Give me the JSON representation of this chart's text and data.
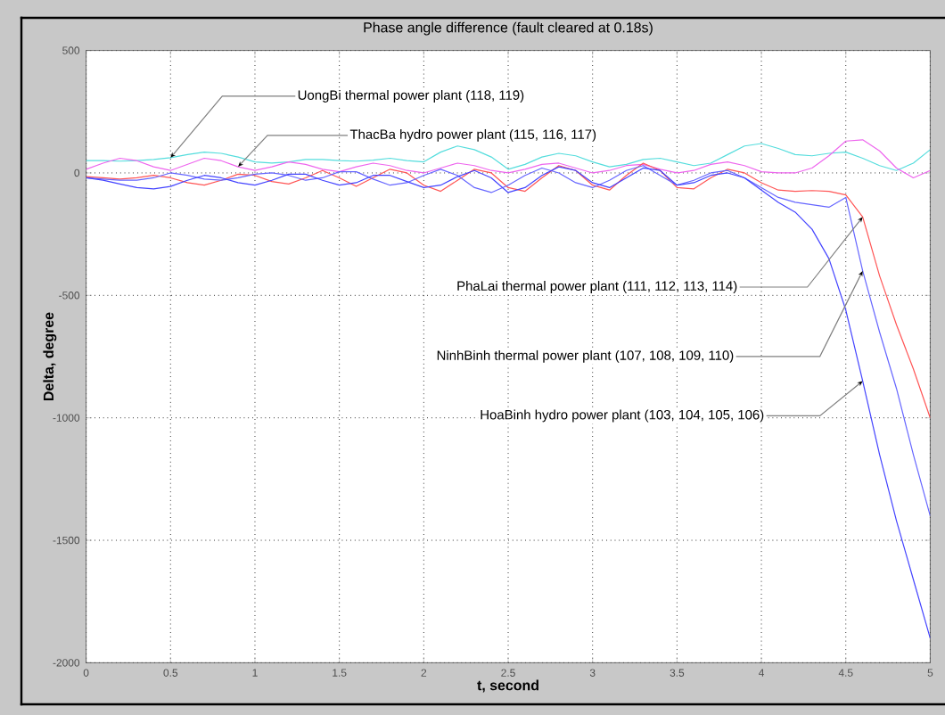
{
  "chart_data": {
    "type": "line",
    "title": "Phase angle difference (fault cleared at 0.18s)",
    "xlabel": "t, second",
    "ylabel": "Delta, degree",
    "x": [
      0,
      0.1,
      0.2,
      0.3,
      0.4,
      0.5,
      0.6,
      0.7,
      0.8,
      0.9,
      1.0,
      1.1,
      1.2,
      1.3,
      1.4,
      1.5,
      1.6,
      1.7,
      1.8,
      1.9,
      2.0,
      2.1,
      2.2,
      2.3,
      2.4,
      2.5,
      2.6,
      2.7,
      2.8,
      2.9,
      3.0,
      3.1,
      3.2,
      3.3,
      3.4,
      3.5,
      3.6,
      3.7,
      3.8,
      3.9,
      4.0,
      4.1,
      4.2,
      4.3,
      4.4,
      4.5,
      4.6,
      4.7,
      4.8,
      4.9,
      5.0
    ],
    "series": [
      {
        "color": "#55dddd",
        "values": [
          50,
          50,
          48,
          50,
          55,
          62,
          75,
          85,
          80,
          65,
          45,
          40,
          45,
          55,
          55,
          50,
          48,
          52,
          60,
          50,
          45,
          85,
          110,
          95,
          65,
          15,
          35,
          65,
          80,
          70,
          45,
          25,
          35,
          55,
          60,
          45,
          30,
          40,
          75,
          110,
          120,
          100,
          75,
          70,
          80,
          85,
          60,
          30,
          10,
          40,
          95
        ]
      },
      {
        "color": "#ee66ee",
        "values": [
          15,
          40,
          60,
          50,
          25,
          10,
          35,
          60,
          50,
          25,
          10,
          25,
          45,
          35,
          15,
          5,
          25,
          40,
          30,
          10,
          0,
          20,
          40,
          30,
          10,
          0,
          15,
          35,
          40,
          20,
          0,
          10,
          30,
          35,
          15,
          0,
          10,
          35,
          45,
          30,
          5,
          0,
          0,
          20,
          70,
          130,
          135,
          90,
          20,
          -20,
          10
        ]
      },
      {
        "color": "#ff5555",
        "values": [
          -15,
          -20,
          -25,
          -20,
          -10,
          -20,
          -40,
          -50,
          -30,
          -5,
          -10,
          -35,
          -45,
          -20,
          10,
          -20,
          -55,
          -20,
          15,
          0,
          -50,
          -75,
          -30,
          15,
          0,
          -60,
          -75,
          -20,
          30,
          10,
          -50,
          -70,
          -10,
          40,
          10,
          -60,
          -65,
          -20,
          15,
          0,
          -40,
          -70,
          -75,
          -72,
          -75,
          -90,
          -180,
          -420,
          -620,
          -800,
          -1000
        ]
      },
      {
        "color": "#6666ff",
        "values": [
          -20,
          -25,
          -30,
          -30,
          -20,
          0,
          -10,
          -25,
          -30,
          -20,
          -5,
          0,
          -10,
          -30,
          -20,
          5,
          5,
          -25,
          -50,
          -40,
          -10,
          15,
          -10,
          -60,
          -80,
          -50,
          -10,
          20,
          0,
          -40,
          -60,
          -30,
          10,
          30,
          -10,
          -50,
          -30,
          0,
          10,
          -20,
          -60,
          -100,
          -120,
          -130,
          -140,
          -100,
          -400,
          -650,
          -880,
          -1150,
          -1400
        ]
      },
      {
        "color": "#4444ff",
        "values": [
          -20,
          -30,
          -45,
          -60,
          -65,
          -55,
          -30,
          -10,
          -20,
          -40,
          -50,
          -30,
          -5,
          -5,
          -30,
          -50,
          -40,
          -10,
          -10,
          -35,
          -60,
          -50,
          -15,
          10,
          -20,
          -80,
          -60,
          -10,
          25,
          10,
          -40,
          -60,
          -20,
          20,
          10,
          -50,
          -40,
          -10,
          0,
          -20,
          -70,
          -120,
          -160,
          -230,
          -350,
          -560,
          -850,
          -1150,
          -1420,
          -1660,
          -1900
        ]
      }
    ],
    "xlim": [
      0,
      5
    ],
    "ylim": [
      -2000,
      500
    ],
    "xticks": [
      0,
      0.5,
      1,
      1.5,
      2,
      2.5,
      3,
      3.5,
      4,
      4.5,
      5
    ],
    "yticks": [
      -2000,
      -1500,
      -1000,
      -500,
      0,
      500
    ],
    "grid": true,
    "annotations": [
      {
        "text": "UongBi thermal power plant (118, 119)",
        "x": 0.5,
        "y": 62
      },
      {
        "text": "ThacBa hydro power plant (115, 116, 117)",
        "x": 0.9,
        "y": 25
      },
      {
        "text": "PhaLai thermal power plant (111, 112, 113, 114)",
        "x": 4.6,
        "y": -180
      },
      {
        "text": "NinhBinh thermal power plant (107, 108, 109, 110)",
        "x": 4.6,
        "y": -400
      },
      {
        "text": "HoaBinh hydro power plant (103, 104, 105, 106)",
        "x": 4.6,
        "y": -850
      }
    ]
  }
}
